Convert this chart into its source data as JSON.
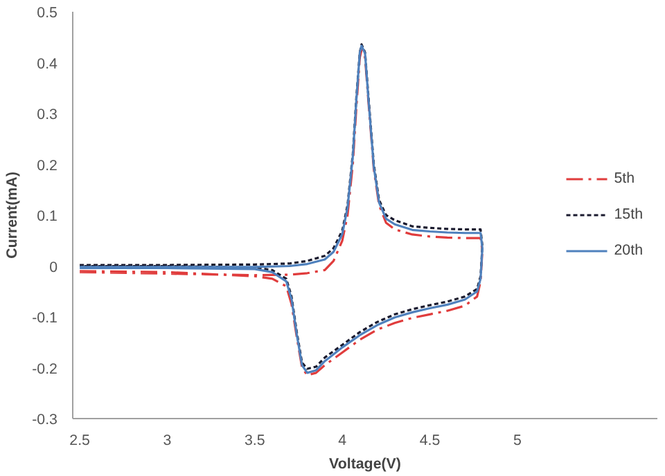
{
  "chart_data": {
    "type": "line",
    "xlabel": "Voltage(V)",
    "ylabel": "Current(mA)",
    "xlim": [
      2.46,
      5.8
    ],
    "ylim": [
      -0.3,
      0.5
    ],
    "xticks": [
      2.5,
      3,
      3.5,
      4,
      4.5,
      5
    ],
    "yticks": [
      -0.3,
      -0.2,
      -0.1,
      0,
      0.1,
      0.2,
      0.3,
      0.4,
      0.5
    ],
    "legend": "right",
    "series": [
      {
        "name": "5th",
        "color": "#e03c3c",
        "line_style": "dashed",
        "x": [
          2.5,
          3.0,
          3.5,
          3.7,
          3.8,
          3.9,
          3.95,
          4.0,
          4.03,
          4.06,
          4.08,
          4.1,
          4.11,
          4.13,
          4.15,
          4.18,
          4.21,
          4.25,
          4.3,
          4.4,
          4.5,
          4.6,
          4.7,
          4.79,
          4.8,
          4.79,
          4.77,
          4.7,
          4.6,
          4.5,
          4.4,
          4.3,
          4.2,
          4.1,
          4.0,
          3.9,
          3.85,
          3.8,
          3.77,
          3.74,
          3.71,
          3.68,
          3.6,
          3.5,
          3.0,
          2.5
        ],
        "values": [
          -0.012,
          -0.015,
          -0.018,
          -0.017,
          -0.014,
          -0.008,
          0.01,
          0.05,
          0.1,
          0.2,
          0.31,
          0.41,
          0.425,
          0.41,
          0.32,
          0.19,
          0.12,
          0.085,
          0.072,
          0.062,
          0.058,
          0.056,
          0.055,
          0.055,
          0.03,
          -0.03,
          -0.06,
          -0.078,
          -0.088,
          -0.095,
          -0.102,
          -0.112,
          -0.125,
          -0.145,
          -0.17,
          -0.195,
          -0.21,
          -0.215,
          -0.2,
          -0.14,
          -0.075,
          -0.04,
          -0.025,
          -0.02,
          -0.012,
          -0.01
        ]
      },
      {
        "name": "15th",
        "color": "#1a1a2e",
        "line_style": "dotted",
        "x": [
          2.5,
          3.0,
          3.5,
          3.7,
          3.8,
          3.9,
          3.95,
          4.0,
          4.03,
          4.06,
          4.08,
          4.1,
          4.11,
          4.13,
          4.15,
          4.18,
          4.21,
          4.25,
          4.3,
          4.4,
          4.5,
          4.6,
          4.7,
          4.79,
          4.8,
          4.79,
          4.77,
          4.7,
          4.6,
          4.5,
          4.4,
          4.3,
          4.2,
          4.1,
          4.0,
          3.9,
          3.85,
          3.8,
          3.77,
          3.74,
          3.71,
          3.68,
          3.6,
          3.5,
          3.0,
          2.5
        ],
        "values": [
          0.002,
          0.002,
          0.003,
          0.005,
          0.01,
          0.02,
          0.035,
          0.07,
          0.12,
          0.22,
          0.33,
          0.42,
          0.436,
          0.42,
          0.33,
          0.2,
          0.13,
          0.1,
          0.09,
          0.078,
          0.075,
          0.073,
          0.072,
          0.072,
          0.04,
          -0.02,
          -0.045,
          -0.06,
          -0.07,
          -0.077,
          -0.085,
          -0.095,
          -0.11,
          -0.13,
          -0.155,
          -0.18,
          -0.198,
          -0.202,
          -0.19,
          -0.13,
          -0.06,
          -0.025,
          -0.008,
          -0.003,
          0.0,
          0.0
        ]
      },
      {
        "name": "20th",
        "color": "#4f81bd",
        "line_style": "solid",
        "x": [
          2.5,
          3.0,
          3.5,
          3.7,
          3.8,
          3.9,
          3.95,
          4.0,
          4.03,
          4.06,
          4.08,
          4.1,
          4.11,
          4.13,
          4.15,
          4.18,
          4.21,
          4.25,
          4.3,
          4.4,
          4.5,
          4.6,
          4.7,
          4.79,
          4.8,
          4.79,
          4.77,
          4.7,
          4.6,
          4.5,
          4.4,
          4.3,
          4.2,
          4.1,
          4.0,
          3.9,
          3.85,
          3.8,
          3.77,
          3.74,
          3.71,
          3.68,
          3.6,
          3.5,
          3.0,
          2.5
        ],
        "values": [
          -0.002,
          -0.002,
          -0.002,
          0.0,
          0.004,
          0.013,
          0.028,
          0.063,
          0.115,
          0.215,
          0.325,
          0.42,
          0.433,
          0.418,
          0.325,
          0.195,
          0.125,
          0.093,
          0.082,
          0.071,
          0.068,
          0.066,
          0.065,
          0.065,
          0.035,
          -0.025,
          -0.05,
          -0.066,
          -0.076,
          -0.083,
          -0.091,
          -0.101,
          -0.116,
          -0.136,
          -0.16,
          -0.187,
          -0.205,
          -0.21,
          -0.195,
          -0.135,
          -0.065,
          -0.03,
          -0.012,
          -0.006,
          -0.004,
          -0.004
        ]
      }
    ]
  }
}
